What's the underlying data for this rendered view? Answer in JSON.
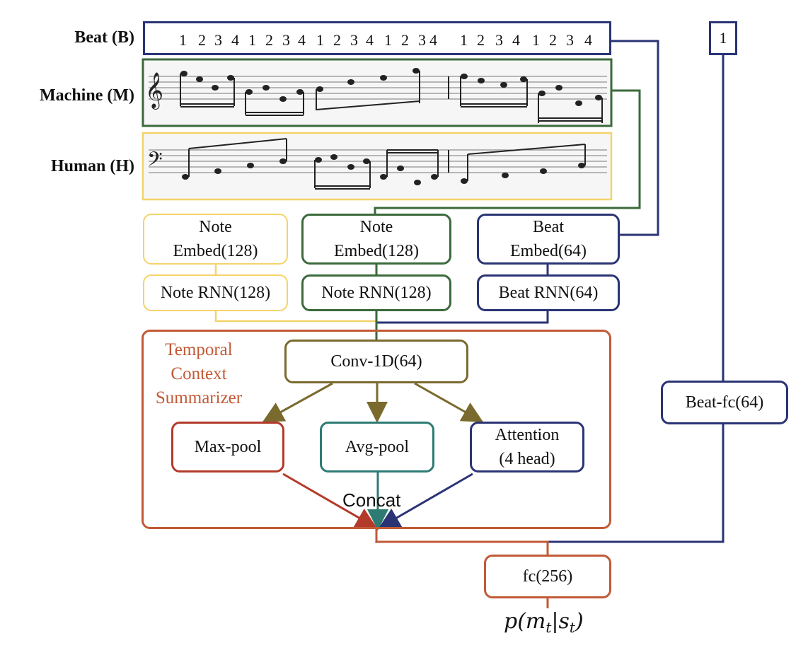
{
  "inputs": {
    "beat_label": "Beat (B)",
    "machine_label": "Machine (M)",
    "human_label": "Human (H)",
    "beat_sequence": [
      "1",
      "2",
      "3",
      "4",
      "1",
      "2",
      "3",
      "4",
      "1",
      "2",
      "3",
      "4",
      "1",
      "2",
      "3",
      "4",
      "1",
      "2",
      "3",
      "4",
      "1",
      "2",
      "3",
      "4"
    ],
    "beat_current": "1"
  },
  "encoders": {
    "human_embed": "Note\nEmbed(128)",
    "machine_embed": "Note\nEmbed(128)",
    "beat_embed": "Beat\nEmbed(64)",
    "human_rnn": "Note RNN(128)",
    "machine_rnn": "Note RNN(128)",
    "beat_rnn": "Beat RNN(64)"
  },
  "summarizer": {
    "title": "Temporal\nContext\nSummarizer",
    "conv": "Conv-1D(64)",
    "maxpool": "Max-pool",
    "avgpool": "Avg-pool",
    "attention": "Attention\n(4 head)",
    "concat": "Concat"
  },
  "beat_fc": "Beat-fc(64)",
  "output": {
    "fc": "fc(256)"
  },
  "colors": {
    "human": "#f4d36a",
    "machine": "#3b6a3b",
    "beat": "#2a3475",
    "summarizer": "#c25a36",
    "conv": "#7a6a2e",
    "maxpool": "#b33a2a",
    "avgpool": "#2e7b74",
    "attention": "#2a3475"
  }
}
